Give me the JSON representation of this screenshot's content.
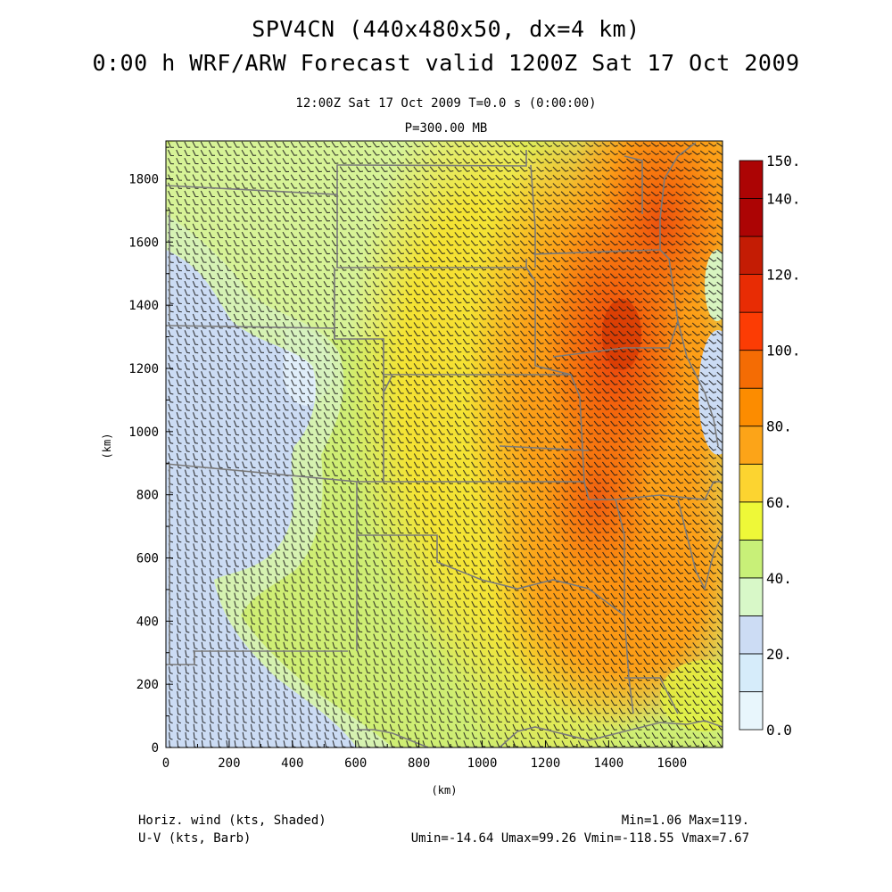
{
  "header": {
    "title_line1": "SPV4CN (440x480x50, dx=4 km)",
    "title_line2": "0:00 h WRF/ARW Forecast valid 1200Z Sat 17 Oct 2009",
    "subtitle": "12:00Z Sat 17 Oct 2009     T=0.0 s (0:00:00)",
    "level": "P=300.00 MB"
  },
  "axes": {
    "x_label": "(km)",
    "y_label": "(km)",
    "x_range": [
      0,
      1760
    ],
    "y_range": [
      0,
      1920
    ],
    "x_ticks": [
      "0",
      "200",
      "400",
      "600",
      "800",
      "1000",
      "1200",
      "1400",
      "1600"
    ],
    "y_ticks": [
      "0",
      "200",
      "400",
      "600",
      "800",
      "1000",
      "1200",
      "1400",
      "1600",
      "1800"
    ]
  },
  "colorbar": {
    "min": 0,
    "max": 150,
    "step": 10,
    "labels": [
      "0.0",
      "20.",
      "40.",
      "60.",
      "80.",
      "100.",
      "120.",
      "140.",
      "150."
    ],
    "colors": [
      "#e8f6fc",
      "#d6ecfa",
      "#ccdcf4",
      "#d8f8c8",
      "#c8f078",
      "#eef838",
      "#fcd430",
      "#fca418",
      "#fc8c00",
      "#f46c04",
      "#fc3c04",
      "#e82c04",
      "#c41c04",
      "#ac0404",
      "#ac0404"
    ]
  },
  "footer": {
    "field": "Horiz. wind (kts, Shaded)",
    "barb": "U-V (kts, Barb)",
    "minmax": "Min=1.06 Max=119.",
    "uv_stats": "Umin=-14.64 Umax=99.26 Vmin=-118.55 Vmax=7.67"
  },
  "map": {
    "border_color": "#7a7a7a",
    "barb_color": "#1a1a1a"
  }
}
